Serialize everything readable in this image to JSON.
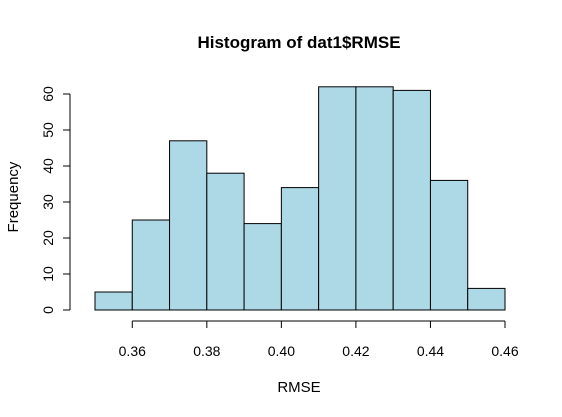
{
  "chart_data": {
    "type": "bar",
    "title": "Histogram of dat1$RMSE",
    "xlabel": "RMSE",
    "ylabel": "Frequency",
    "bins": [
      {
        "start": 0.35,
        "end": 0.36,
        "count": 5
      },
      {
        "start": 0.36,
        "end": 0.37,
        "count": 25
      },
      {
        "start": 0.37,
        "end": 0.38,
        "count": 47
      },
      {
        "start": 0.38,
        "end": 0.39,
        "count": 38
      },
      {
        "start": 0.39,
        "end": 0.4,
        "count": 24
      },
      {
        "start": 0.4,
        "end": 0.41,
        "count": 34
      },
      {
        "start": 0.41,
        "end": 0.42,
        "count": 62
      },
      {
        "start": 0.42,
        "end": 0.43,
        "count": 62
      },
      {
        "start": 0.43,
        "end": 0.44,
        "count": 61
      },
      {
        "start": 0.44,
        "end": 0.45,
        "count": 36
      },
      {
        "start": 0.45,
        "end": 0.46,
        "count": 6
      }
    ],
    "x_ticks": [
      "0.36",
      "0.38",
      "0.40",
      "0.42",
      "0.44",
      "0.46"
    ],
    "y_ticks": [
      "0",
      "10",
      "20",
      "30",
      "40",
      "50",
      "60"
    ],
    "xlim": [
      0.35,
      0.46
    ],
    "ylim": [
      0,
      62
    ],
    "grid": false,
    "bar_color": "#add8e6",
    "border_color": "#000000"
  }
}
